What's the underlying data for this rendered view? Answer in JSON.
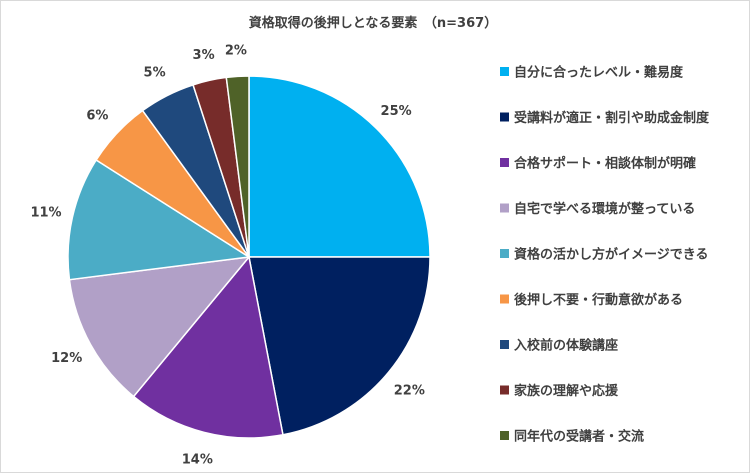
{
  "chart_data": {
    "type": "pie",
    "title": "資格取得の後押しとなる要素　（n=367）",
    "categories": [
      "自分に合ったレベル・難易度",
      "受講料が適正・割引や助成金制度",
      "合格サポート・相談体制が明確",
      "自宅で学べる環境が整っている",
      "資格の活かし方がイメージできる",
      "後押し不要・行動意欲がある",
      "入校前の体験講座",
      "家族の理解や応援",
      "同年代の受講者・交流"
    ],
    "values": [
      25,
      22,
      14,
      12,
      11,
      6,
      5,
      3,
      2
    ],
    "value_labels": [
      "25%",
      "22%",
      "14%",
      "12%",
      "11%",
      "6%",
      "5%",
      "3%",
      "2%"
    ],
    "colors": [
      "#00b0f0",
      "#002060",
      "#7030a0",
      "#b1a0c7",
      "#4bacc6",
      "#f79646",
      "#1f497d",
      "#772c2a",
      "#4f6228"
    ],
    "legend_position": "right"
  }
}
